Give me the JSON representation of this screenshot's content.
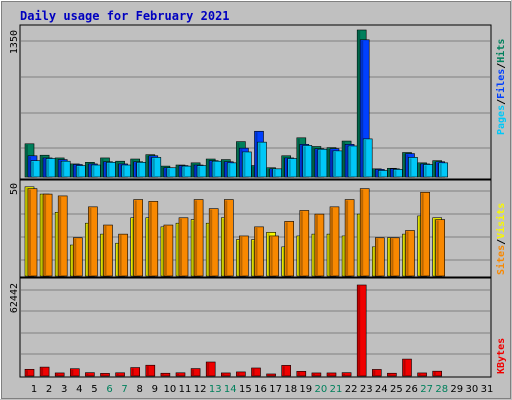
{
  "title": "Daily usage for February 2021",
  "colors": {
    "hits": "#00805C",
    "files": "#0040FF",
    "pages": "#00C8F8",
    "visits": "#F8F800",
    "sites": "#F88800",
    "kbytes": "#F00000",
    "weekend": "#00805C",
    "weekday": "#000000",
    "separator": "#000000"
  },
  "chart_data": [
    {
      "type": "bar",
      "panel": "hits-files-pages",
      "ymax_label": "1350",
      "ylim": [
        0,
        1350
      ],
      "legend": [
        "Pages",
        "/",
        "Files",
        "/",
        "Hits"
      ],
      "days": [
        1,
        2,
        3,
        4,
        5,
        6,
        7,
        8,
        9,
        10,
        11,
        12,
        13,
        14,
        15,
        16,
        17,
        18,
        19,
        20,
        21,
        22,
        23,
        24,
        25,
        26,
        27,
        28,
        29,
        30,
        31
      ],
      "weekend_days": [
        6,
        7,
        13,
        14,
        20,
        21,
        27,
        28
      ],
      "series": [
        {
          "name": "Hits",
          "values": [
            305,
            200,
            175,
            120,
            135,
            175,
            145,
            165,
            205,
            100,
            110,
            130,
            165,
            160,
            325,
            105,
            85,
            195,
            360,
            280,
            270,
            330,
            1350,
            75,
            80,
            225,
            130,
            150
          ]
        },
        {
          "name": "Files",
          "values": [
            195,
            175,
            160,
            115,
            120,
            140,
            120,
            140,
            195,
            85,
            105,
            110,
            150,
            140,
            265,
            420,
            75,
            175,
            300,
            260,
            260,
            300,
            1260,
            70,
            75,
            215,
            120,
            140
          ]
        },
        {
          "name": "Pages",
          "values": [
            150,
            170,
            145,
            105,
            110,
            135,
            110,
            135,
            180,
            85,
            100,
            105,
            145,
            130,
            230,
            320,
            75,
            170,
            290,
            255,
            240,
            285,
            350,
            60,
            70,
            180,
            115,
            130
          ]
        }
      ]
    },
    {
      "type": "bar",
      "panel": "visits-sites",
      "ymax_label": "50",
      "ylim": [
        0,
        50
      ],
      "legend": [
        "Sites",
        "/",
        "Visits"
      ],
      "series": [
        {
          "name": "Visits",
          "values": [
            49,
            45,
            35,
            17,
            29,
            23,
            18,
            32,
            32,
            27,
            29,
            31,
            29,
            32,
            20,
            20,
            24,
            16,
            22,
            23,
            23,
            22,
            34,
            16,
            21,
            23,
            33,
            32
          ]
        },
        {
          "name": "Sites",
          "values": [
            48,
            45,
            44,
            21,
            38,
            28,
            23,
            42,
            41,
            28,
            32,
            42,
            37,
            42,
            22,
            27,
            22,
            30,
            36,
            34,
            38,
            42,
            48,
            21,
            21,
            25,
            46,
            31
          ]
        }
      ]
    },
    {
      "type": "bar",
      "panel": "kbytes",
      "ymax_label": "62442",
      "ylim": [
        0,
        62442
      ],
      "legend": [
        "KBytes"
      ],
      "series": [
        {
          "name": "KBytes",
          "values": [
            4600,
            6100,
            2100,
            5000,
            2300,
            1800,
            2200,
            5800,
            7400,
            1900,
            2200,
            5100,
            9600,
            2100,
            2800,
            5500,
            1400,
            7300,
            3200,
            2100,
            2100,
            2300,
            62442,
            4500,
            1900,
            11600,
            2100,
            3300
          ]
        }
      ]
    }
  ]
}
